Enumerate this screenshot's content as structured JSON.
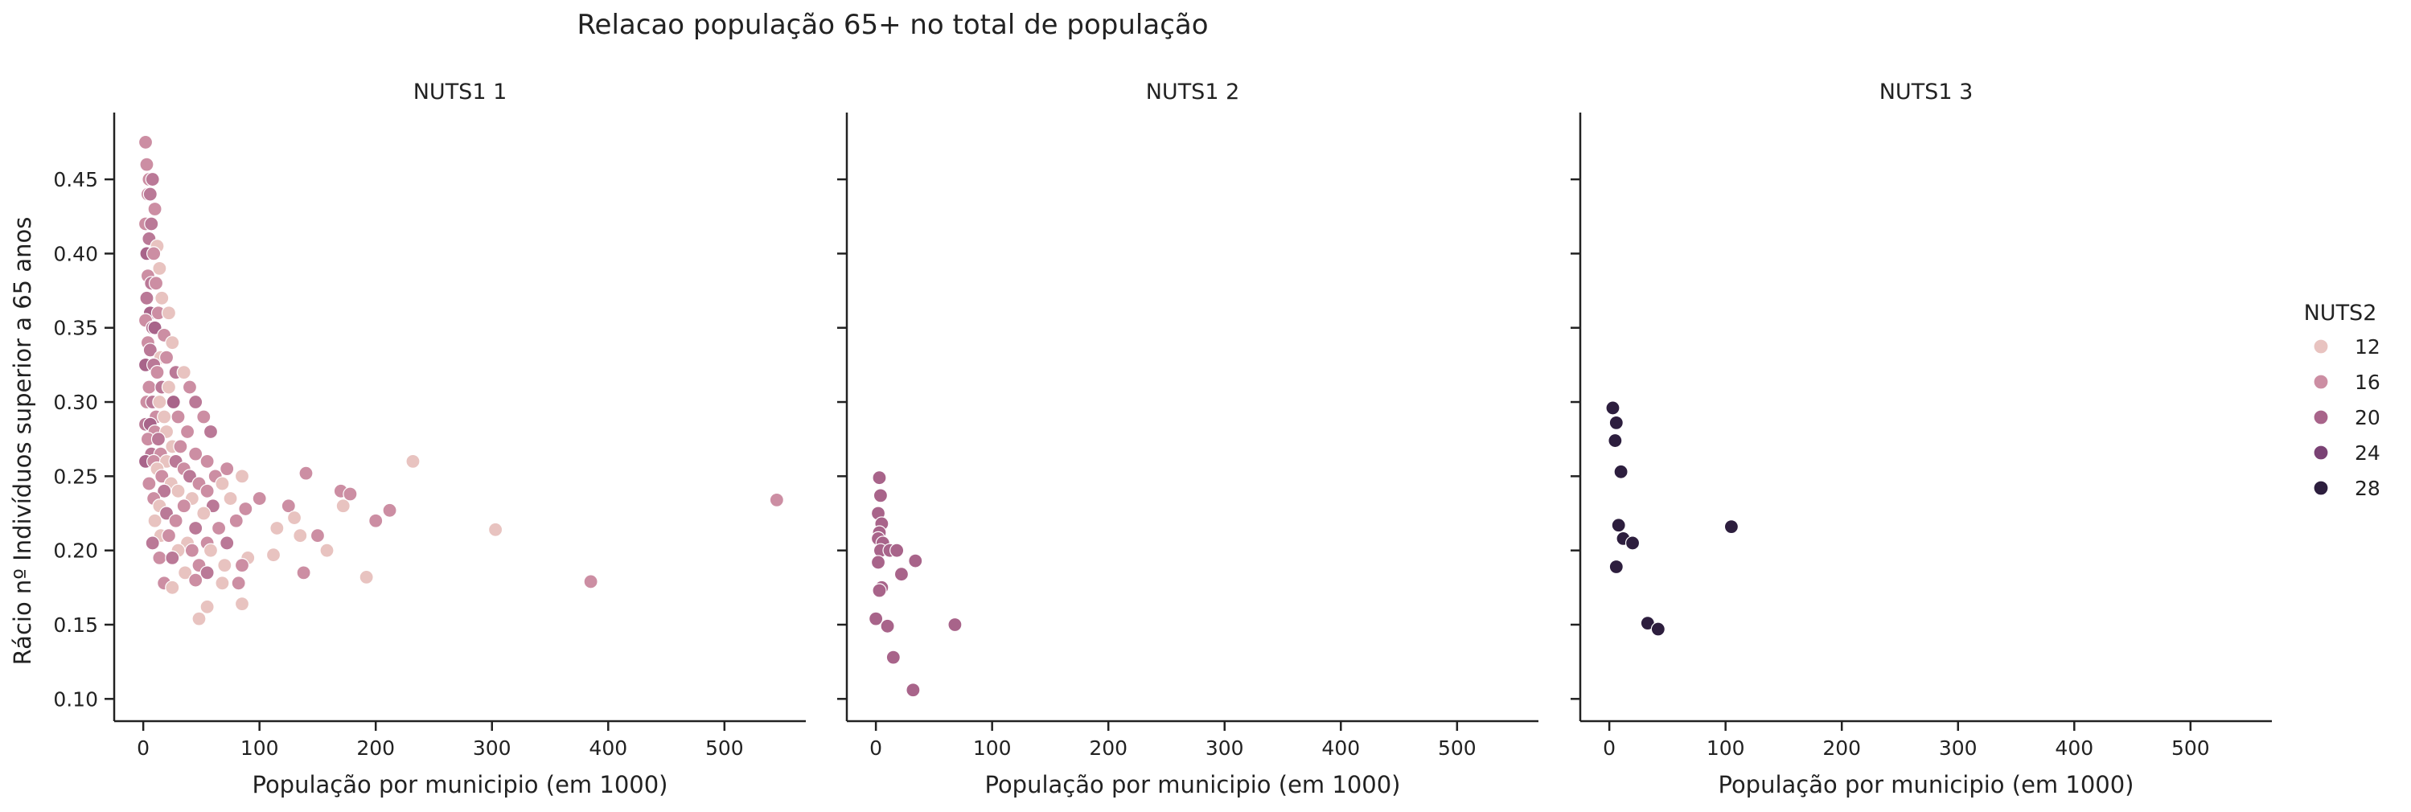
{
  "chart_data": {
    "type": "scatter",
    "title": "Relacao população 65+ no total de população",
    "xlabel": "População por municipio (em 1000)",
    "ylabel": "Rácio nº Indivíduos superior a 65 anos",
    "xlim": [
      -25,
      570
    ],
    "ylim": [
      0.085,
      0.495
    ],
    "x_ticks": [
      0,
      100,
      200,
      300,
      400,
      500
    ],
    "y_ticks": [
      0.1,
      0.15,
      0.2,
      0.25,
      0.3,
      0.35,
      0.4,
      0.45
    ],
    "grid": false,
    "legend": {
      "title": "NUTS2",
      "placement": "right",
      "entries": [
        {
          "label": "12",
          "color": "#e8c3c0"
        },
        {
          "label": "16",
          "color": "#cc8ea3"
        },
        {
          "label": "20",
          "color": "#a8648a"
        },
        {
          "label": "24",
          "color": "#7a4274"
        },
        {
          "label": "28",
          "color": "#2d1e3e"
        }
      ]
    },
    "panels": [
      {
        "title": "NUTS1 1",
        "points": [
          [
            2,
            0.475,
            16
          ],
          [
            3,
            0.46,
            16
          ],
          [
            5,
            0.45,
            16
          ],
          [
            8,
            0.45,
            18
          ],
          [
            4,
            0.44,
            16
          ],
          [
            6,
            0.44,
            18
          ],
          [
            10,
            0.43,
            16
          ],
          [
            2,
            0.42,
            16
          ],
          [
            7,
            0.42,
            18
          ],
          [
            5,
            0.41,
            18
          ],
          [
            12,
            0.405,
            12
          ],
          [
            3,
            0.4,
            20
          ],
          [
            9,
            0.4,
            16
          ],
          [
            14,
            0.39,
            12
          ],
          [
            4,
            0.385,
            16
          ],
          [
            7,
            0.38,
            18
          ],
          [
            11,
            0.38,
            16
          ],
          [
            16,
            0.37,
            12
          ],
          [
            3,
            0.37,
            18
          ],
          [
            6,
            0.36,
            20
          ],
          [
            13,
            0.36,
            16
          ],
          [
            22,
            0.36,
            12
          ],
          [
            2,
            0.355,
            16
          ],
          [
            8,
            0.35,
            18
          ],
          [
            10,
            0.35,
            20
          ],
          [
            18,
            0.345,
            16
          ],
          [
            25,
            0.34,
            12
          ],
          [
            4,
            0.34,
            16
          ],
          [
            6,
            0.335,
            18
          ],
          [
            15,
            0.33,
            12
          ],
          [
            20,
            0.33,
            16
          ],
          [
            2,
            0.325,
            20
          ],
          [
            9,
            0.325,
            18
          ],
          [
            12,
            0.32,
            16
          ],
          [
            28,
            0.32,
            18
          ],
          [
            35,
            0.32,
            12
          ],
          [
            5,
            0.31,
            16
          ],
          [
            16,
            0.31,
            18
          ],
          [
            22,
            0.31,
            12
          ],
          [
            40,
            0.31,
            16
          ],
          [
            3,
            0.3,
            16
          ],
          [
            8,
            0.3,
            18
          ],
          [
            14,
            0.3,
            12
          ],
          [
            26,
            0.3,
            20
          ],
          [
            45,
            0.3,
            18
          ],
          [
            52,
            0.29,
            16
          ],
          [
            11,
            0.29,
            16
          ],
          [
            18,
            0.29,
            12
          ],
          [
            30,
            0.29,
            16
          ],
          [
            2,
            0.285,
            18
          ],
          [
            6,
            0.285,
            20
          ],
          [
            10,
            0.28,
            16
          ],
          [
            20,
            0.28,
            12
          ],
          [
            38,
            0.28,
            16
          ],
          [
            58,
            0.28,
            18
          ],
          [
            4,
            0.275,
            16
          ],
          [
            13,
            0.275,
            18
          ],
          [
            25,
            0.27,
            12
          ],
          [
            32,
            0.27,
            16
          ],
          [
            7,
            0.265,
            18
          ],
          [
            15,
            0.265,
            16
          ],
          [
            45,
            0.265,
            16
          ],
          [
            2,
            0.26,
            20
          ],
          [
            9,
            0.26,
            16
          ],
          [
            20,
            0.26,
            12
          ],
          [
            28,
            0.26,
            18
          ],
          [
            55,
            0.26,
            16
          ],
          [
            12,
            0.255,
            12
          ],
          [
            35,
            0.255,
            16
          ],
          [
            72,
            0.255,
            16
          ],
          [
            16,
            0.25,
            16
          ],
          [
            40,
            0.25,
            18
          ],
          [
            62,
            0.25,
            16
          ],
          [
            85,
            0.25,
            12
          ],
          [
            140,
            0.252,
            16
          ],
          [
            232,
            0.26,
            12
          ],
          [
            5,
            0.245,
            16
          ],
          [
            24,
            0.245,
            12
          ],
          [
            48,
            0.245,
            16
          ],
          [
            68,
            0.245,
            12
          ],
          [
            18,
            0.24,
            18
          ],
          [
            30,
            0.24,
            12
          ],
          [
            55,
            0.24,
            16
          ],
          [
            100,
            0.235,
            16
          ],
          [
            170,
            0.24,
            16
          ],
          [
            178,
            0.238,
            16
          ],
          [
            545,
            0.234,
            16
          ],
          [
            9,
            0.235,
            16
          ],
          [
            42,
            0.235,
            12
          ],
          [
            75,
            0.235,
            12
          ],
          [
            14,
            0.23,
            12
          ],
          [
            35,
            0.23,
            16
          ],
          [
            60,
            0.23,
            18
          ],
          [
            88,
            0.228,
            16
          ],
          [
            125,
            0.23,
            16
          ],
          [
            172,
            0.23,
            12
          ],
          [
            212,
            0.227,
            16
          ],
          [
            20,
            0.225,
            18
          ],
          [
            52,
            0.225,
            12
          ],
          [
            80,
            0.22,
            16
          ],
          [
            130,
            0.222,
            12
          ],
          [
            200,
            0.22,
            16
          ],
          [
            10,
            0.22,
            12
          ],
          [
            28,
            0.22,
            16
          ],
          [
            45,
            0.215,
            18
          ],
          [
            65,
            0.215,
            16
          ],
          [
            115,
            0.215,
            12
          ],
          [
            150,
            0.21,
            16
          ],
          [
            303,
            0.214,
            12
          ],
          [
            15,
            0.21,
            12
          ],
          [
            22,
            0.21,
            16
          ],
          [
            38,
            0.205,
            12
          ],
          [
            55,
            0.205,
            16
          ],
          [
            72,
            0.205,
            18
          ],
          [
            135,
            0.21,
            12
          ],
          [
            8,
            0.205,
            18
          ],
          [
            30,
            0.2,
            12
          ],
          [
            42,
            0.2,
            16
          ],
          [
            58,
            0.2,
            12
          ],
          [
            90,
            0.195,
            12
          ],
          [
            112,
            0.197,
            12
          ],
          [
            158,
            0.2,
            12
          ],
          [
            14,
            0.195,
            16
          ],
          [
            25,
            0.195,
            18
          ],
          [
            48,
            0.19,
            16
          ],
          [
            70,
            0.19,
            12
          ],
          [
            85,
            0.19,
            16
          ],
          [
            138,
            0.185,
            16
          ],
          [
            36,
            0.185,
            12
          ],
          [
            55,
            0.185,
            18
          ],
          [
            18,
            0.178,
            16
          ],
          [
            25,
            0.175,
            12
          ],
          [
            45,
            0.18,
            16
          ],
          [
            82,
            0.178,
            16
          ],
          [
            192,
            0.182,
            12
          ],
          [
            385,
            0.179,
            16
          ],
          [
            68,
            0.178,
            12
          ],
          [
            85,
            0.164,
            12
          ],
          [
            55,
            0.162,
            12
          ],
          [
            48,
            0.154,
            12
          ]
        ]
      },
      {
        "title": "NUTS1 2",
        "points": [
          [
            3,
            0.249,
            20
          ],
          [
            4,
            0.237,
            20
          ],
          [
            2,
            0.225,
            20
          ],
          [
            5,
            0.218,
            20
          ],
          [
            3,
            0.212,
            20
          ],
          [
            2,
            0.208,
            20
          ],
          [
            6,
            0.205,
            20
          ],
          [
            4,
            0.2,
            20
          ],
          [
            12,
            0.2,
            20
          ],
          [
            18,
            0.2,
            20
          ],
          [
            34,
            0.193,
            20
          ],
          [
            2,
            0.192,
            20
          ],
          [
            22,
            0.184,
            20
          ],
          [
            5,
            0.175,
            20
          ],
          [
            3,
            0.173,
            20
          ],
          [
            0,
            0.154,
            20
          ],
          [
            10,
            0.149,
            20
          ],
          [
            68,
            0.15,
            20
          ],
          [
            15,
            0.128,
            20
          ],
          [
            32,
            0.106,
            20
          ]
        ]
      },
      {
        "title": "NUTS1 3",
        "points": [
          [
            3,
            0.296,
            28
          ],
          [
            6,
            0.286,
            28
          ],
          [
            5,
            0.274,
            28
          ],
          [
            10,
            0.253,
            28
          ],
          [
            8,
            0.217,
            28
          ],
          [
            12,
            0.208,
            28
          ],
          [
            20,
            0.205,
            28
          ],
          [
            105,
            0.216,
            28
          ],
          [
            6,
            0.189,
            28
          ],
          [
            33,
            0.151,
            28
          ],
          [
            42,
            0.147,
            28
          ]
        ]
      }
    ]
  }
}
